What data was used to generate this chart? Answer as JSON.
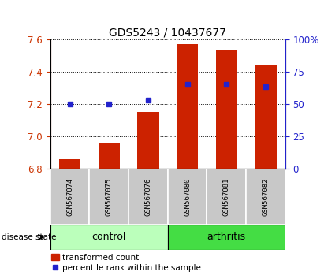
{
  "title": "GDS5243 / 10437677",
  "samples": [
    "GSM567074",
    "GSM567075",
    "GSM567076",
    "GSM567080",
    "GSM567081",
    "GSM567082"
  ],
  "transformed_count": [
    6.86,
    6.96,
    7.15,
    7.57,
    7.53,
    7.44
  ],
  "percentile_rank": [
    50,
    50,
    53,
    65,
    65,
    63
  ],
  "ylim_left": [
    6.8,
    7.6
  ],
  "ylim_right": [
    0,
    100
  ],
  "yticks_left": [
    6.8,
    7.0,
    7.2,
    7.4,
    7.6
  ],
  "yticks_right": [
    0,
    25,
    50,
    75,
    100
  ],
  "ytick_labels_right": [
    "0",
    "25",
    "50",
    "75",
    "100%"
  ],
  "bar_color": "#CC2200",
  "marker_color": "#2222CC",
  "bar_bottom": 6.8,
  "groups": [
    {
      "label": "control",
      "color": "#BBFFBB",
      "start": 0,
      "end": 2
    },
    {
      "label": "arthritis",
      "color": "#44DD44",
      "start": 3,
      "end": 5
    }
  ],
  "disease_state_label": "disease state",
  "legend_bar_label": "transformed count",
  "legend_marker_label": "percentile rank within the sample",
  "tick_area_color": "#C8C8C8",
  "left_axis_color": "#CC3300",
  "right_axis_color": "#2222CC"
}
